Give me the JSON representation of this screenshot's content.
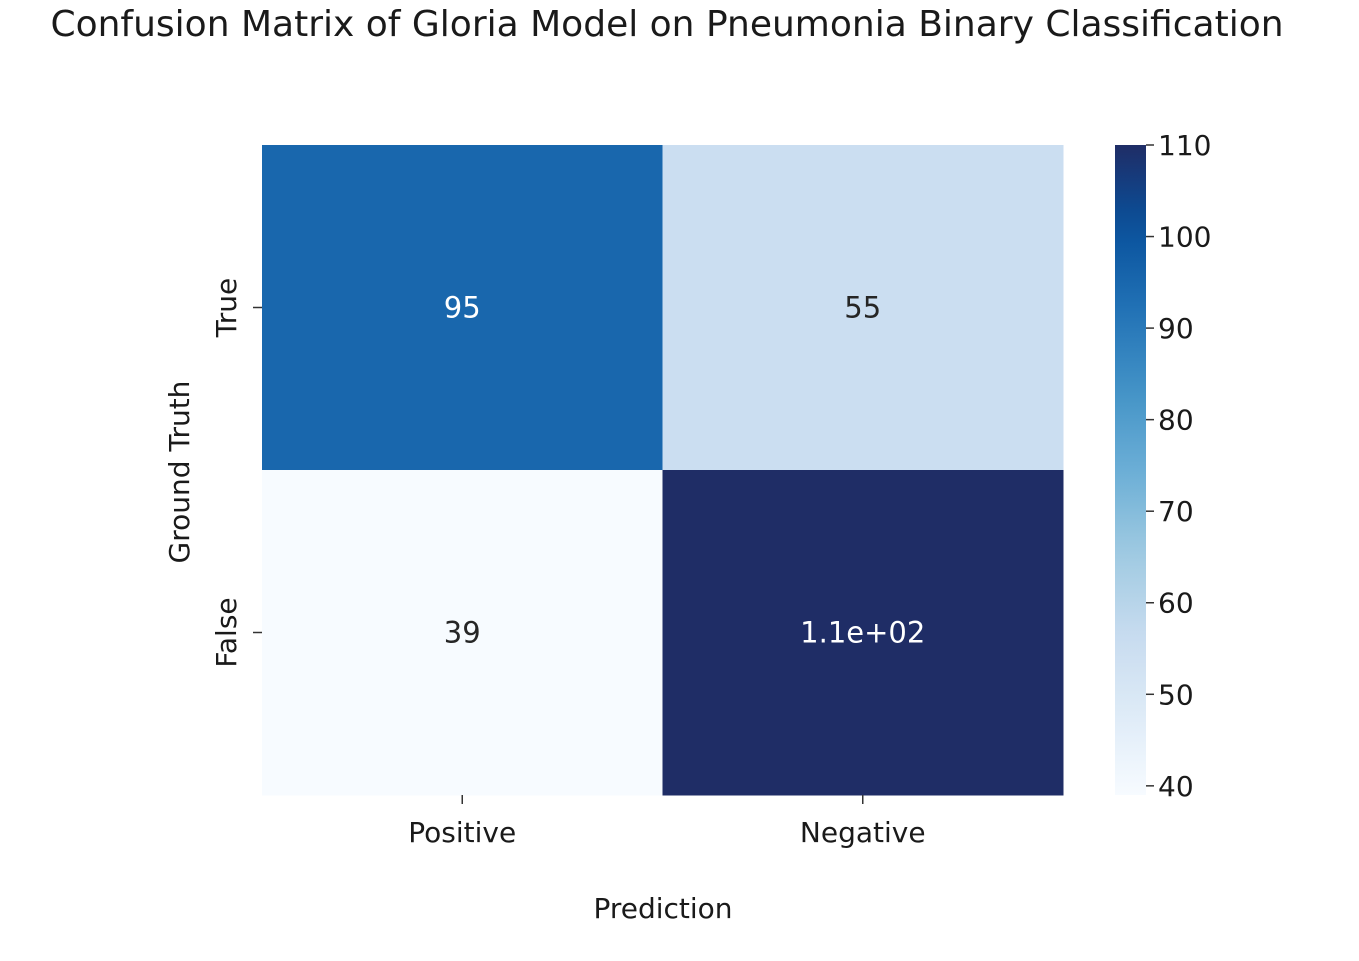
{
  "chart_data": {
    "type": "heatmap",
    "title": "Confusion Matrix of Gloria Model on Pneumonia Binary Classification",
    "xlabel": "Prediction",
    "ylabel": "Ground Truth",
    "x_categories": [
      "Positive",
      "Negative"
    ],
    "y_categories": [
      "True",
      "False"
    ],
    "values": [
      [
        95,
        55
      ],
      [
        39,
        110
      ]
    ],
    "annotations": [
      [
        "95",
        "55"
      ],
      [
        "39",
        "1.1e+02"
      ]
    ],
    "colormap": "Blues",
    "colorbar": {
      "range": [
        39,
        110
      ],
      "ticks": [
        40,
        50,
        60,
        70,
        80,
        90,
        100,
        110
      ]
    },
    "colors": {
      "low": "#f7fbff",
      "high": "#1f2d66",
      "annotation_dark_bg": "#ffffff",
      "annotation_light_bg": "#262626"
    },
    "grid": false
  }
}
